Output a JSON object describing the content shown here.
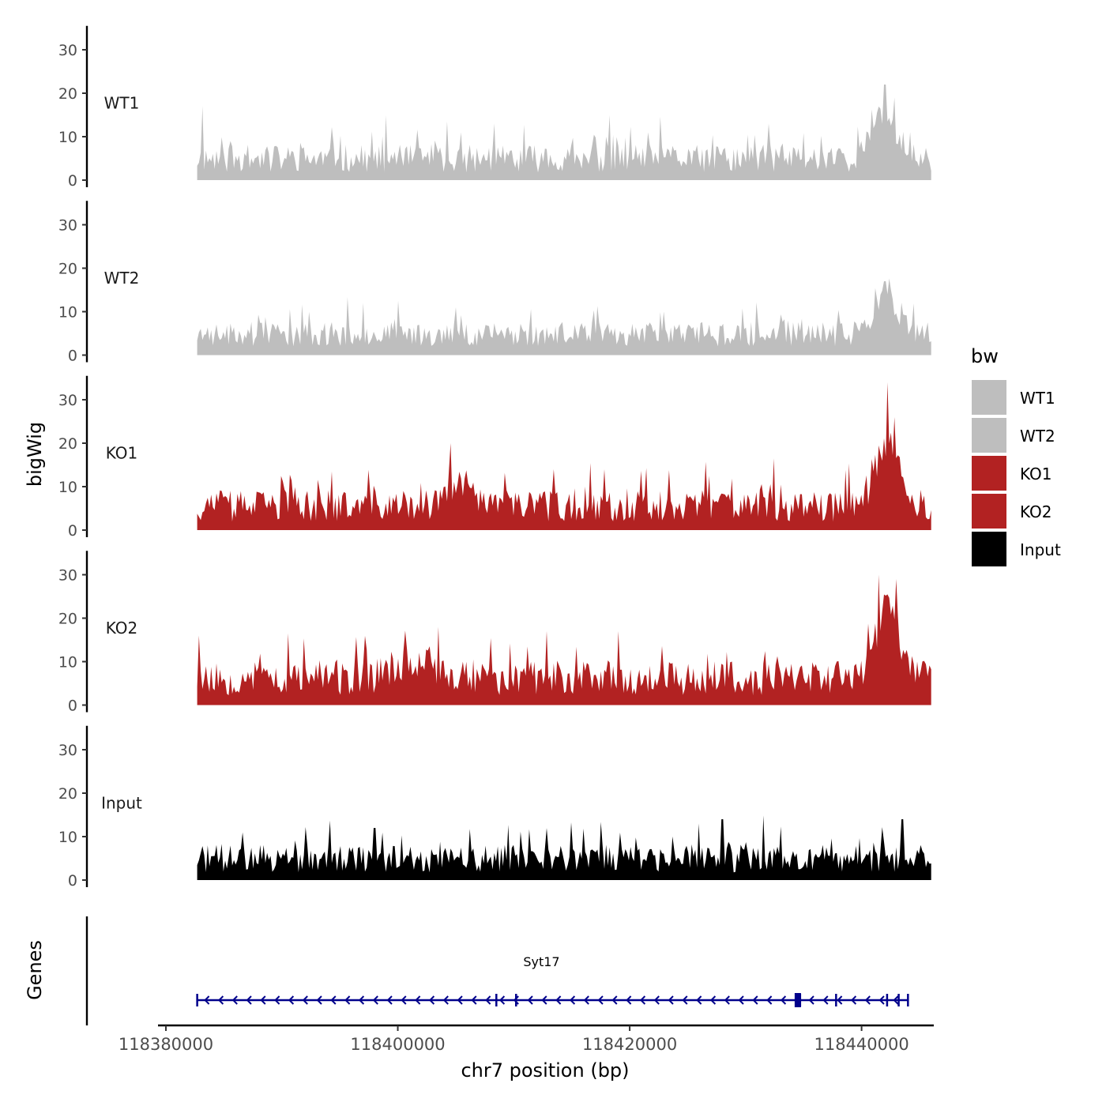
{
  "chart_data": {
    "type": "area",
    "title": "",
    "ylabel": "bigWig",
    "xlabel": "chr7 position (bp)",
    "ylim": [
      0,
      35
    ],
    "yticks": [
      0,
      10,
      20,
      30
    ],
    "xlim": [
      118380000,
      118445000
    ],
    "xticks": [
      118380000,
      118400000,
      118420000,
      118440000
    ],
    "xtick_labels": [
      "118380000",
      "118400000",
      "118420000",
      "118440000"
    ],
    "data_range": [
      118382700,
      118446000
    ],
    "legend": {
      "title": "bw",
      "position": "right",
      "entries": [
        {
          "label": "WT1",
          "color": "#bebebe"
        },
        {
          "label": "WT2",
          "color": "#bebebe"
        },
        {
          "label": "KO1",
          "color": "#b22222"
        },
        {
          "label": "KO2",
          "color": "#b22222"
        },
        {
          "label": "Input",
          "color": "#000000"
        }
      ]
    },
    "series": [
      {
        "name": "WT1",
        "color": "#bebebe",
        "baseline": 4,
        "noise": 4,
        "seed": 11,
        "peaks": [
          [
            118383200,
            17
          ],
          [
            118405500,
            11
          ],
          [
            118418000,
            10
          ],
          [
            118432000,
            13
          ],
          [
            118442000,
            22
          ],
          [
            118442800,
            19
          ]
        ],
        "humps": [
          [
            118442000,
            1500,
            10
          ]
        ]
      },
      {
        "name": "WT2",
        "color": "#bebebe",
        "baseline": 4,
        "noise": 3.5,
        "seed": 23,
        "peaks": [
          [
            118397000,
            12
          ],
          [
            118405000,
            11
          ],
          [
            118423000,
            10
          ],
          [
            118442000,
            17
          ],
          [
            118442500,
            15
          ]
        ],
        "humps": [
          [
            118442000,
            1500,
            8
          ]
        ]
      },
      {
        "name": "KO1",
        "color": "#b22222",
        "baseline": 4.5,
        "noise": 4.5,
        "seed": 37,
        "peaks": [
          [
            118404500,
            20
          ],
          [
            118413500,
            14
          ],
          [
            118417800,
            14
          ],
          [
            118442200,
            34
          ],
          [
            118442800,
            26
          ]
        ],
        "humps": [
          [
            118442200,
            1400,
            14
          ],
          [
            118405500,
            1500,
            5
          ]
        ]
      },
      {
        "name": "KO2",
        "color": "#b22222",
        "baseline": 5,
        "noise": 5,
        "seed": 53,
        "peaks": [
          [
            118382800,
            16
          ],
          [
            118403500,
            18
          ],
          [
            118419000,
            17
          ],
          [
            118441500,
            30
          ],
          [
            118443000,
            29
          ]
        ],
        "humps": [
          [
            118442200,
            1400,
            16
          ],
          [
            118401500,
            2500,
            4
          ]
        ]
      },
      {
        "name": "Input",
        "color": "#000000",
        "baseline": 4,
        "noise": 4,
        "seed": 71,
        "peaks": [
          [
            118398000,
            12
          ],
          [
            118428000,
            14
          ],
          [
            118426000,
            13
          ],
          [
            118443500,
            14
          ]
        ],
        "humps": []
      }
    ],
    "genes": {
      "label": "Genes",
      "items": [
        {
          "name": "Syt17",
          "start": 118382700,
          "end": 118444000,
          "strand": "-",
          "color": "#00008b",
          "exons": [
            118382700,
            118408500,
            118410200,
            118434500,
            118434700,
            118437800,
            118442200,
            118443200,
            118444000
          ]
        }
      ]
    }
  }
}
